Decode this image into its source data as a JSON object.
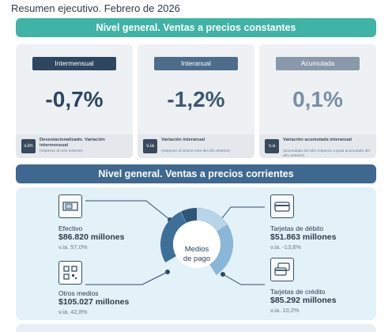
{
  "page": {
    "title": "Resumen ejecutivo. Febrero de 2026"
  },
  "section1": {
    "title": "Nivel general. Ventas a precios constantes",
    "cards": [
      {
        "tag": "Intermensual",
        "value": "-0,7%",
        "badge": "v.im",
        "note_title": "Desestacionalizado. Variación intermensual",
        "note_sub": "(respecto al mes anterior)"
      },
      {
        "tag": "Interanual",
        "value": "-1,2%",
        "badge": "v.ia",
        "note_title": "Variación interanual",
        "note_sub": "(respecto al mismo mes del año anterior)"
      },
      {
        "tag": "Acumulada",
        "value": "0,1%",
        "badge": "v.a",
        "note_title": "Variación acumulada interanual",
        "note_sub": "(acumulado del año respecto a igual acumulado del año anterior)"
      }
    ]
  },
  "section2": {
    "title": "Nivel general. Ventas a precios corrientes",
    "center_label_1": "Medios",
    "center_label_2": "de pago",
    "items": {
      "efectivo": {
        "label": "Efectivo",
        "amount": "$86.820 millones",
        "sub": "v.ia. 57,0%",
        "icon": "cash-icon"
      },
      "otros": {
        "label": "Otros medios",
        "amount": "$105.027 millones",
        "sub": "v.ia. 42,8%",
        "icon": "qr-code-icon"
      },
      "debito": {
        "label": "Tarjetas de débito",
        "amount": "$51.863 millones",
        "sub": "v.ia. -13,6%",
        "icon": "debit-card-icon"
      },
      "credito": {
        "label": "Tarjetas de crédito",
        "amount": "$85.292 millones",
        "sub": "v.ia. 10,2%",
        "icon": "credit-cards-icon"
      }
    }
  },
  "colors": {
    "teal": "#3fb3a4",
    "navy": "#3f6890",
    "donut_efectivo": "#3d6f99",
    "donut_otros": "#2f5578",
    "donut_debito": "#b7d4e8",
    "donut_credito": "#8ab6d8"
  }
}
